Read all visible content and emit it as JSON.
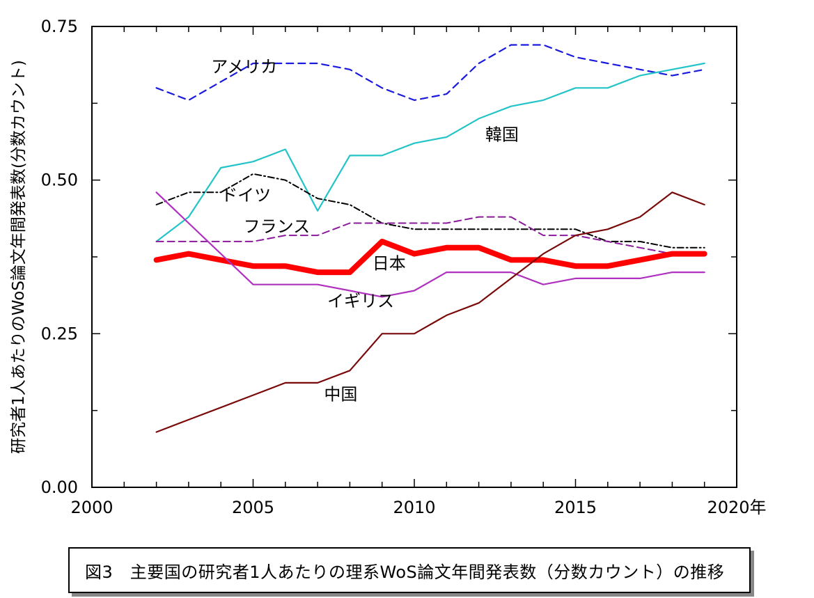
{
  "chart_data": {
    "type": "line",
    "xlim": [
      2000,
      2020
    ],
    "ylim": [
      0,
      0.75
    ],
    "x_ticks": [
      {
        "value": 2000,
        "label": "2000"
      },
      {
        "value": 2005,
        "label": "2005"
      },
      {
        "value": 2010,
        "label": "2010"
      },
      {
        "value": 2015,
        "label": "2015"
      },
      {
        "value": 2020,
        "label": "2020年"
      }
    ],
    "y_ticks": [
      {
        "value": 0,
        "label": "0.00"
      },
      {
        "value": 0.25,
        "label": "0.25"
      },
      {
        "value": 0.5,
        "label": "0.50"
      },
      {
        "value": 0.75,
        "label": "0.75"
      }
    ],
    "ylabel": "研究者1人あたりのWoS論文年間発表数(分数カウント)",
    "x": [
      2002,
      2003,
      2004,
      2005,
      2006,
      2007,
      2008,
      2009,
      2010,
      2011,
      2012,
      2013,
      2014,
      2015,
      2016,
      2017,
      2018,
      2019
    ],
    "series": [
      {
        "name": "アメリカ",
        "color": "#1a1adc",
        "dash": "10,7",
        "width": 2.2,
        "values": [
          0.65,
          0.63,
          0.66,
          0.69,
          0.69,
          0.69,
          0.68,
          0.65,
          0.63,
          0.64,
          0.69,
          0.72,
          0.72,
          0.7,
          0.69,
          0.68,
          0.67,
          0.68
        ]
      },
      {
        "name": "韓国",
        "color": "#22c4c8",
        "dash": "",
        "width": 2.2,
        "values": [
          0.4,
          0.44,
          0.52,
          0.53,
          0.55,
          0.45,
          0.54,
          0.54,
          0.56,
          0.57,
          0.6,
          0.62,
          0.63,
          0.65,
          0.65,
          0.67,
          0.68,
          0.69
        ]
      },
      {
        "name": "ドイツ",
        "color": "#000000",
        "dash": "9,4,2,4",
        "width": 2,
        "values": [
          0.46,
          0.48,
          0.48,
          0.51,
          0.5,
          0.47,
          0.46,
          0.43,
          0.42,
          0.42,
          0.42,
          0.42,
          0.42,
          0.42,
          0.4,
          0.4,
          0.39,
          0.39
        ]
      },
      {
        "name": "フランス",
        "color": "#8a1a9a",
        "dash": "10,6",
        "width": 2,
        "values": [
          0.4,
          0.4,
          0.4,
          0.4,
          0.41,
          0.41,
          0.43,
          0.43,
          0.43,
          0.43,
          0.44,
          0.44,
          0.41,
          0.41,
          0.4,
          0.39,
          0.38,
          0.38
        ]
      },
      {
        "name": "日本",
        "color": "#ff0000",
        "dash": "",
        "width": 8,
        "values": [
          0.37,
          0.38,
          0.37,
          0.36,
          0.36,
          0.35,
          0.35,
          0.4,
          0.38,
          0.39,
          0.39,
          0.37,
          0.37,
          0.36,
          0.36,
          0.37,
          0.38,
          0.38
        ]
      },
      {
        "name": "イギリス",
        "color": "#b030c0",
        "dash": "",
        "width": 2.2,
        "values": [
          0.48,
          0.43,
          0.38,
          0.33,
          0.33,
          0.33,
          0.32,
          0.31,
          0.32,
          0.35,
          0.35,
          0.35,
          0.33,
          0.34,
          0.34,
          0.34,
          0.35,
          0.35
        ]
      },
      {
        "name": "中国",
        "color": "#7a0a0a",
        "dash": "",
        "width": 2.2,
        "values": [
          0.09,
          0.11,
          0.13,
          0.15,
          0.17,
          0.17,
          0.19,
          0.25,
          0.25,
          0.28,
          0.3,
          0.34,
          0.38,
          0.41,
          0.42,
          0.44,
          0.48,
          0.46
        ]
      }
    ],
    "annotations": [
      {
        "text": "アメリカ",
        "x": 2003.7,
        "y": 0.675
      },
      {
        "text": "韓国",
        "x": 2012.2,
        "y": 0.565
      },
      {
        "text": "ドイツ",
        "x": 2004.0,
        "y": 0.466
      },
      {
        "text": "フランス",
        "x": 2004.7,
        "y": 0.415
      },
      {
        "text": "日本",
        "x": 2008.7,
        "y": 0.355
      },
      {
        "text": "イギリス",
        "x": 2007.3,
        "y": 0.294
      },
      {
        "text": "中国",
        "x": 2007.2,
        "y": 0.142
      }
    ]
  },
  "caption": "図3　主要国の研究者1人あたりの理系WoS論文年間発表数（分数カウント）の推移"
}
